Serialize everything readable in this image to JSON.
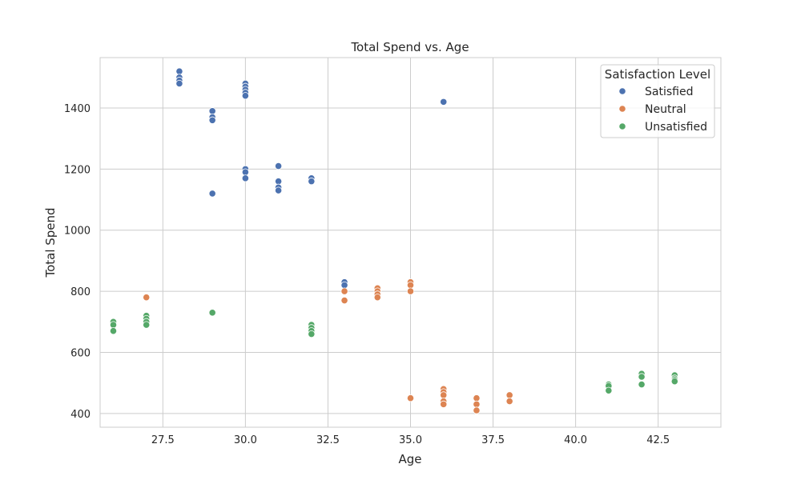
{
  "chart_data": {
    "type": "scatter",
    "title": "Total Spend vs. Age",
    "xlabel": "Age",
    "ylabel": "Total Spend",
    "xlim": [
      25.6,
      44.4
    ],
    "ylim": [
      355,
      1565
    ],
    "xticks": [
      27.5,
      30.0,
      32.5,
      35.0,
      37.5,
      40.0,
      42.5
    ],
    "xtick_labels": [
      "27.5",
      "30.0",
      "32.5",
      "35.0",
      "37.5",
      "40.0",
      "42.5"
    ],
    "yticks": [
      400,
      600,
      800,
      1000,
      1200,
      1400
    ],
    "ytick_labels": [
      "400",
      "600",
      "800",
      "1000",
      "1200",
      "1400"
    ],
    "grid": true,
    "legend": {
      "title": "Satisfaction Level",
      "position": "top-right"
    },
    "series": [
      {
        "name": "Satisfied",
        "color": "#4c72b0",
        "points": [
          [
            28,
            1520
          ],
          [
            28,
            1500
          ],
          [
            28,
            1490
          ],
          [
            28,
            1480
          ],
          [
            29,
            1390
          ],
          [
            29,
            1370
          ],
          [
            29,
            1360
          ],
          [
            29,
            1120
          ],
          [
            30,
            1480
          ],
          [
            30,
            1470
          ],
          [
            30,
            1460
          ],
          [
            30,
            1450
          ],
          [
            30,
            1440
          ],
          [
            30,
            1200
          ],
          [
            30,
            1190
          ],
          [
            30,
            1170
          ],
          [
            31,
            1210
          ],
          [
            31,
            1160
          ],
          [
            31,
            1140
          ],
          [
            31,
            1130
          ],
          [
            32,
            1170
          ],
          [
            32,
            1160
          ],
          [
            33,
            830
          ],
          [
            33,
            820
          ],
          [
            36,
            1420
          ]
        ]
      },
      {
        "name": "Neutral",
        "color": "#dd8452",
        "points": [
          [
            27,
            780
          ],
          [
            33,
            800
          ],
          [
            33,
            770
          ],
          [
            34,
            810
          ],
          [
            34,
            800
          ],
          [
            34,
            790
          ],
          [
            34,
            780
          ],
          [
            35,
            830
          ],
          [
            35,
            820
          ],
          [
            35,
            800
          ],
          [
            35,
            450
          ],
          [
            36,
            480
          ],
          [
            36,
            470
          ],
          [
            36,
            460
          ],
          [
            36,
            440
          ],
          [
            36,
            430
          ],
          [
            37,
            450
          ],
          [
            37,
            430
          ],
          [
            37,
            410
          ],
          [
            38,
            460
          ],
          [
            38,
            440
          ]
        ]
      },
      {
        "name": "Unsatisfied",
        "color": "#55a868",
        "points": [
          [
            26,
            700
          ],
          [
            26,
            690
          ],
          [
            26,
            670
          ],
          [
            27,
            720
          ],
          [
            27,
            710
          ],
          [
            27,
            700
          ],
          [
            27,
            690
          ],
          [
            29,
            730
          ],
          [
            32,
            690
          ],
          [
            32,
            680
          ],
          [
            32,
            670
          ],
          [
            32,
            660
          ],
          [
            41,
            495
          ],
          [
            41,
            490
          ],
          [
            41,
            475
          ],
          [
            42,
            530
          ],
          [
            42,
            520
          ],
          [
            42,
            495
          ],
          [
            43,
            525
          ],
          [
            43,
            515
          ],
          [
            43,
            510
          ],
          [
            43,
            505
          ]
        ]
      }
    ]
  }
}
